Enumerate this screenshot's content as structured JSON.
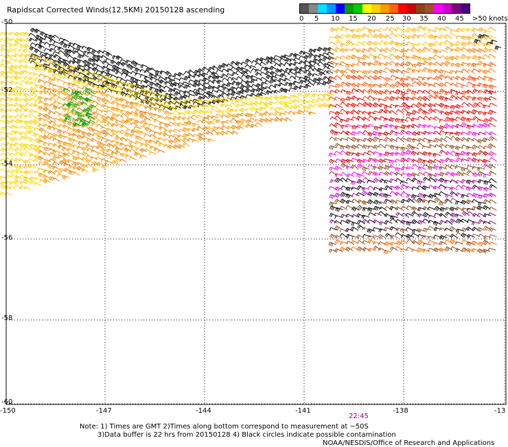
{
  "title": "Rapidscat Corrected Winds(12.5KM) 20150128 ascending",
  "legend": {
    "labels": [
      "0",
      "5",
      "10",
      "15",
      "20",
      "25",
      "30",
      "35",
      "40",
      "45",
      ">50 knots"
    ],
    "colors": [
      "#555555",
      "#888888",
      "#00e0ff",
      "#0099ff",
      "#0000ff",
      "#00a000",
      "#00cc00",
      "#ffff00",
      "#ffd000",
      "#ff9900",
      "#ff6600",
      "#ff0000",
      "#cc0000",
      "#8b4513",
      "#a0522d",
      "#ff00ff",
      "#cc00cc",
      "#800080",
      "#4b0082"
    ]
  },
  "map": {
    "lat_labels": [
      "-50",
      "-52",
      "-54",
      "-56",
      "-58",
      "-60"
    ],
    "lon_labels": [
      "-150",
      "-147",
      "-144",
      "-141",
      "-138",
      "-13"
    ],
    "time_label": "22:45"
  },
  "notes": {
    "line1": "Note: 1) Times are GMT 2)Times along bottom correspond to measurement at ~50S",
    "line2": "3)Data buffer is 22 hrs from 20150128 4) Black circles indicate possible contamination",
    "line3": "NOAA/NESDIS/Office of Research and Applications"
  }
}
